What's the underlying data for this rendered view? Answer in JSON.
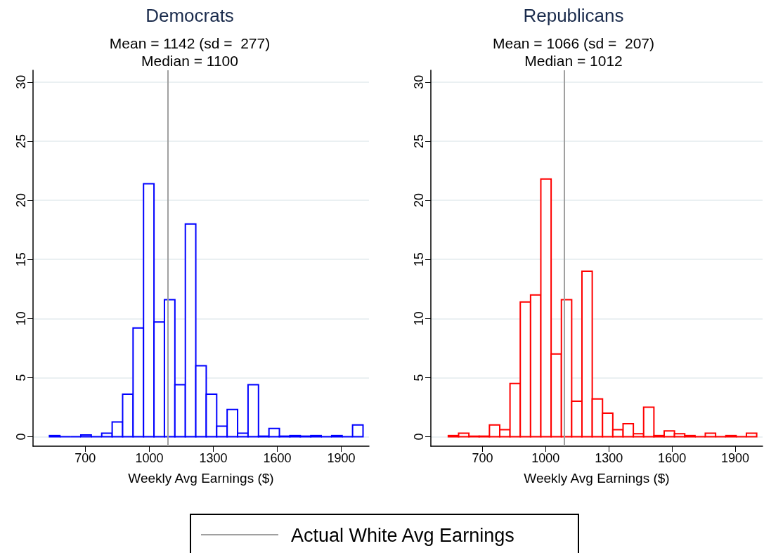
{
  "chart_data": [
    {
      "type": "histogram",
      "title": "Democrats",
      "subtitle": "Mean = 1142 (sd =  277)\nMedian = 1100",
      "xlabel": "Weekly Avg Earnings ($)",
      "color": "#0000ff",
      "bins": [
        532,
        581,
        630,
        679,
        728,
        777,
        826,
        875,
        924,
        973,
        1022,
        1071,
        1120,
        1169,
        1218,
        1267,
        1316,
        1365,
        1414,
        1463,
        1512,
        1561,
        1610,
        1659,
        1708,
        1757,
        1806,
        1855,
        1904,
        1953,
        2002
      ],
      "values": [
        0.1,
        0,
        0,
        0.15,
        0,
        0.3,
        1.25,
        3.6,
        9.2,
        21.4,
        9.7,
        11.6,
        4.4,
        18,
        6,
        3.6,
        0.9,
        2.3,
        0.3,
        4.4,
        0.05,
        0.7,
        0.05,
        0.1,
        0.05,
        0.1,
        0,
        0.1,
        0,
        1
      ],
      "xlim": [
        455,
        2030
      ],
      "xticks": [
        700,
        1000,
        1300,
        1600,
        1900
      ],
      "ylim": [
        -0.8,
        31
      ],
      "yticks": [
        0,
        5,
        10,
        15,
        20,
        25,
        30
      ],
      "grid": "y",
      "ref_lines": [
        {
          "axis": "x",
          "value": 1087,
          "label": "Actual White Avg Earnings",
          "color": "#a0a0a0"
        }
      ]
    },
    {
      "type": "histogram",
      "title": "Republicans",
      "subtitle": "Mean = 1066 (sd =  207)\nMedian = 1012",
      "xlabel": "Weekly Avg Earnings ($)",
      "color": "#ff0000",
      "bins": [
        538,
        586.8,
        635.6,
        684.4,
        733.2,
        782,
        830.8,
        879.6,
        928.4,
        977.2,
        1026,
        1074.8,
        1123.6,
        1172.4,
        1221.2,
        1270,
        1318.8,
        1367.6,
        1416.4,
        1465.2,
        1514,
        1562.8,
        1611.6,
        1660.4,
        1709.2,
        1758,
        1806.8,
        1855.6,
        1904.4,
        1953.2,
        2002
      ],
      "values": [
        0.1,
        0.3,
        0.05,
        0.05,
        1,
        0.6,
        4.5,
        11.4,
        12,
        21.8,
        7,
        11.6,
        3,
        14,
        3.2,
        2,
        0.6,
        1.1,
        0.25,
        2.5,
        0.1,
        0.5,
        0.25,
        0.1,
        0,
        0.3,
        0,
        0.1,
        0,
        0.3
      ],
      "xlim": [
        455,
        2030
      ],
      "xticks": [
        700,
        1000,
        1300,
        1600,
        1900
      ],
      "ylim": [
        -0.8,
        31
      ],
      "yticks": [
        0,
        5,
        10,
        15,
        20,
        25,
        30
      ],
      "grid": "y",
      "ref_lines": [
        {
          "axis": "x",
          "value": 1087,
          "color": "#a0a0a0"
        }
      ]
    }
  ]
}
